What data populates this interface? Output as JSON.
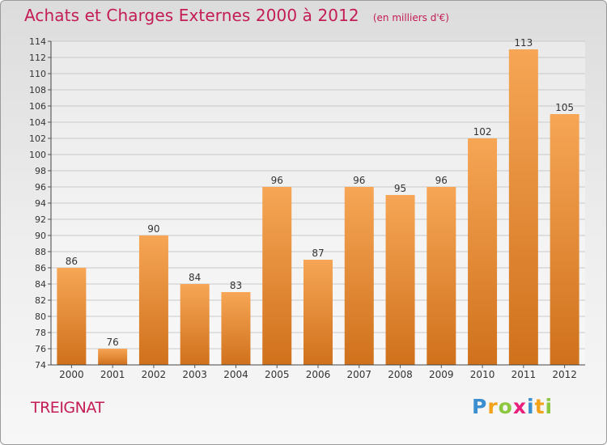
{
  "header": {
    "title": "Achats et Charges Externes 2000 à 2012",
    "unit": "(en milliers d'€)"
  },
  "location": "TREIGNAT",
  "brand": {
    "letters": [
      "P",
      "r",
      "o",
      "x",
      "i",
      "t",
      "i"
    ],
    "colors": [
      "#3b8ed0",
      "#f5a21b",
      "#8dc63f",
      "#e8207d",
      "#3b8ed0",
      "#f5a21b",
      "#8dc63f"
    ]
  },
  "colors": {
    "title": "#c31c56",
    "bar_light": "#f6a655",
    "bar_dark": "#d0711c"
  },
  "chart_data": {
    "type": "bar",
    "title": "Achats et Charges Externes 2000 à 2012",
    "categories": [
      "2000",
      "2001",
      "2002",
      "2003",
      "2004",
      "2005",
      "2006",
      "2007",
      "2008",
      "2009",
      "2010",
      "2011",
      "2012"
    ],
    "values": [
      86,
      76,
      90,
      84,
      83,
      96,
      87,
      96,
      95,
      96,
      102,
      113,
      105
    ],
    "ylim": [
      74,
      114
    ],
    "yticks": [
      74,
      76,
      78,
      80,
      82,
      84,
      86,
      88,
      90,
      92,
      94,
      96,
      98,
      100,
      102,
      104,
      106,
      108,
      110,
      112,
      114
    ],
    "grid": true,
    "data_labels": true
  }
}
